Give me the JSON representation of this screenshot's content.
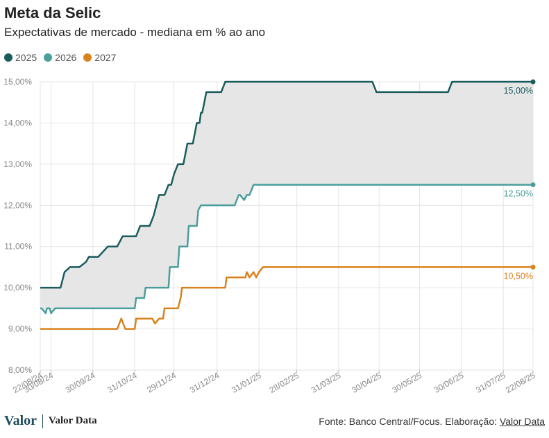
{
  "header": {
    "title": "Meta da Selic",
    "subtitle": "Expectativas de mercado - mediana em % ao ano"
  },
  "footer": {
    "logo_text": "Valor",
    "brand": "Valor Data",
    "source_prefix": "Fonte: Banco Central/Focus. Elaboração: ",
    "source_link": "Valor Data"
  },
  "colors": {
    "series_2025": "#1a5c5c",
    "series_2026": "#4a9e9c",
    "series_2027": "#d9821e",
    "band_fill": "#e6e6e6",
    "grid": "#e4e4e4"
  },
  "chart_data": {
    "type": "line",
    "xlabel": "",
    "ylabel": "",
    "ylim": [
      8,
      15
    ],
    "xlim": [
      "2024-08-22",
      "2025-08-22"
    ],
    "y_ticks": [
      "8,00%",
      "9,00%",
      "10,00%",
      "11,00%",
      "12,00%",
      "13,00%",
      "14,00%",
      "15,00%"
    ],
    "x_ticks": [
      {
        "date": "2024-08-22",
        "label": "22/08/24"
      },
      {
        "date": "2024-08-30",
        "label": "30/08/24"
      },
      {
        "date": "2024-09-30",
        "label": "30/09/24"
      },
      {
        "date": "2024-10-31",
        "label": "31/10/24"
      },
      {
        "date": "2024-11-29",
        "label": "29/11/24"
      },
      {
        "date": "2024-12-31",
        "label": "31/12/24"
      },
      {
        "date": "2025-01-31",
        "label": "31/01/25"
      },
      {
        "date": "2025-02-28",
        "label": "28/02/25"
      },
      {
        "date": "2025-03-31",
        "label": "31/03/25"
      },
      {
        "date": "2025-04-30",
        "label": "30/04/25"
      },
      {
        "date": "2025-05-30",
        "label": "30/05/25"
      },
      {
        "date": "2025-06-30",
        "label": "30/06/25"
      },
      {
        "date": "2025-07-31",
        "label": "31/07/25"
      },
      {
        "date": "2025-08-22",
        "label": "22/08/25"
      }
    ],
    "fill_between": [
      "2025",
      "2026"
    ],
    "legend": "top-left",
    "grid": true,
    "series": [
      {
        "name": "2025",
        "end_label": "15,00%",
        "points": [
          [
            "2024-08-22",
            10.0
          ],
          [
            "2024-09-06",
            10.0
          ],
          [
            "2024-09-09",
            10.38
          ],
          [
            "2024-09-13",
            10.5
          ],
          [
            "2024-09-20",
            10.5
          ],
          [
            "2024-09-25",
            10.63
          ],
          [
            "2024-09-27",
            10.75
          ],
          [
            "2024-10-04",
            10.75
          ],
          [
            "2024-10-11",
            11.0
          ],
          [
            "2024-10-18",
            11.0
          ],
          [
            "2024-10-22",
            11.25
          ],
          [
            "2024-11-01",
            11.25
          ],
          [
            "2024-11-04",
            11.5
          ],
          [
            "2024-11-11",
            11.5
          ],
          [
            "2024-11-14",
            11.75
          ],
          [
            "2024-11-18",
            12.25
          ],
          [
            "2024-11-22",
            12.25
          ],
          [
            "2024-11-25",
            12.5
          ],
          [
            "2024-11-27",
            12.5
          ],
          [
            "2024-11-29",
            12.75
          ],
          [
            "2024-12-02",
            13.0
          ],
          [
            "2024-12-06",
            13.0
          ],
          [
            "2024-12-09",
            13.5
          ],
          [
            "2024-12-13",
            13.5
          ],
          [
            "2024-12-16",
            14.0
          ],
          [
            "2024-12-18",
            14.0
          ],
          [
            "2024-12-19",
            14.25
          ],
          [
            "2024-12-20",
            14.25
          ],
          [
            "2024-12-23",
            14.75
          ],
          [
            "2025-01-03",
            14.75
          ],
          [
            "2025-01-06",
            15.0
          ],
          [
            "2025-04-25",
            15.0
          ],
          [
            "2025-04-28",
            14.75
          ],
          [
            "2025-06-20",
            14.75
          ],
          [
            "2025-06-23",
            15.0
          ],
          [
            "2025-08-22",
            15.0
          ]
        ]
      },
      {
        "name": "2026",
        "end_label": "12,50%",
        "points": [
          [
            "2024-08-22",
            9.5
          ],
          [
            "2024-08-23",
            9.5
          ],
          [
            "2024-08-26",
            9.38
          ],
          [
            "2024-08-27",
            9.5
          ],
          [
            "2024-08-29",
            9.5
          ],
          [
            "2024-08-30",
            9.38
          ],
          [
            "2024-09-02",
            9.5
          ],
          [
            "2024-10-31",
            9.5
          ],
          [
            "2024-11-01",
            9.75
          ],
          [
            "2024-11-07",
            9.75
          ],
          [
            "2024-11-08",
            10.0
          ],
          [
            "2024-11-25",
            10.0
          ],
          [
            "2024-11-26",
            10.5
          ],
          [
            "2024-12-02",
            10.5
          ],
          [
            "2024-12-03",
            11.0
          ],
          [
            "2024-12-09",
            11.0
          ],
          [
            "2024-12-10",
            11.5
          ],
          [
            "2024-12-16",
            11.5
          ],
          [
            "2024-12-17",
            11.88
          ],
          [
            "2024-12-19",
            12.0
          ],
          [
            "2025-01-13",
            12.0
          ],
          [
            "2025-01-16",
            12.25
          ],
          [
            "2025-01-17",
            12.25
          ],
          [
            "2025-01-20",
            12.13
          ],
          [
            "2025-01-22",
            12.25
          ],
          [
            "2025-01-24",
            12.25
          ],
          [
            "2025-01-27",
            12.5
          ],
          [
            "2025-08-22",
            12.5
          ]
        ]
      },
      {
        "name": "2027",
        "end_label": "10,50%",
        "points": [
          [
            "2024-08-22",
            9.0
          ],
          [
            "2024-10-18",
            9.0
          ],
          [
            "2024-10-21",
            9.25
          ],
          [
            "2024-10-24",
            9.0
          ],
          [
            "2024-10-31",
            9.0
          ],
          [
            "2024-11-01",
            9.25
          ],
          [
            "2024-11-13",
            9.25
          ],
          [
            "2024-11-15",
            9.13
          ],
          [
            "2024-11-18",
            9.25
          ],
          [
            "2024-11-21",
            9.25
          ],
          [
            "2024-11-22",
            9.5
          ],
          [
            "2024-12-02",
            9.5
          ],
          [
            "2024-12-04",
            9.75
          ],
          [
            "2024-12-05",
            10.0
          ],
          [
            "2025-01-06",
            10.0
          ],
          [
            "2025-01-07",
            10.25
          ],
          [
            "2025-01-21",
            10.25
          ],
          [
            "2025-01-22",
            10.38
          ],
          [
            "2025-01-24",
            10.25
          ],
          [
            "2025-01-27",
            10.38
          ],
          [
            "2025-01-29",
            10.25
          ],
          [
            "2025-01-31",
            10.38
          ],
          [
            "2025-02-03",
            10.5
          ],
          [
            "2025-08-22",
            10.5
          ]
        ]
      }
    ]
  }
}
